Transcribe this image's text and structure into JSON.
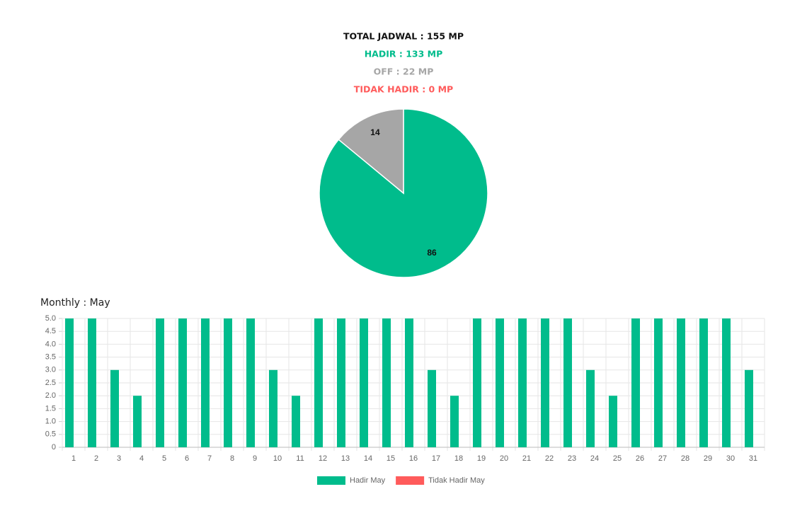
{
  "summary": [
    {
      "text": "TOTAL JADWAL : 155 MP",
      "color": "#111111"
    },
    {
      "text": "HADIR : 133 MP",
      "color": "#00bc8c"
    },
    {
      "text": "OFF : 22 MP",
      "color": "#a6a6a6"
    },
    {
      "text": "TIDAK HADIR : 0 MP",
      "color": "#ff5b5b"
    }
  ],
  "chart_data": [
    {
      "type": "pie",
      "values": [
        86,
        14
      ],
      "colors": [
        "#00bc8c",
        "#a6a6a6"
      ]
    },
    {
      "type": "bar",
      "title": "Monthly : May",
      "categories": [
        "1",
        "2",
        "3",
        "4",
        "5",
        "6",
        "7",
        "8",
        "9",
        "10",
        "11",
        "12",
        "13",
        "14",
        "15",
        "16",
        "17",
        "18",
        "19",
        "20",
        "21",
        "22",
        "23",
        "24",
        "25",
        "26",
        "27",
        "28",
        "29",
        "30",
        "31"
      ],
      "series": [
        {
          "name": "Hadir May",
          "color": "#00bc8c",
          "values": [
            5,
            5,
            3,
            2,
            5,
            5,
            5,
            5,
            5,
            3,
            2,
            5,
            5,
            5,
            5,
            5,
            3,
            2,
            5,
            5,
            5,
            5,
            5,
            3,
            2,
            5,
            5,
            5,
            5,
            5,
            3
          ]
        },
        {
          "name": "Tidak Hadir May",
          "color": "#ff5b5b",
          "values": [
            0,
            0,
            0,
            0,
            0,
            0,
            0,
            0,
            0,
            0,
            0,
            0,
            0,
            0,
            0,
            0,
            0,
            0,
            0,
            0,
            0,
            0,
            0,
            0,
            0,
            0,
            0,
            0,
            0,
            0,
            0
          ]
        }
      ],
      "ylim": [
        0,
        5
      ],
      "yticks": [
        0,
        0.5,
        {
          "value": 1,
          "label": "1.0"
        },
        1.5,
        {
          "value": 2,
          "label": "2.0"
        },
        2.5,
        {
          "value": 3,
          "label": "3.0"
        },
        3.5,
        {
          "value": 4,
          "label": "4.0"
        },
        4.5,
        {
          "value": 5,
          "label": "5.0"
        }
      ],
      "grid": true,
      "legend": "bottom"
    }
  ]
}
